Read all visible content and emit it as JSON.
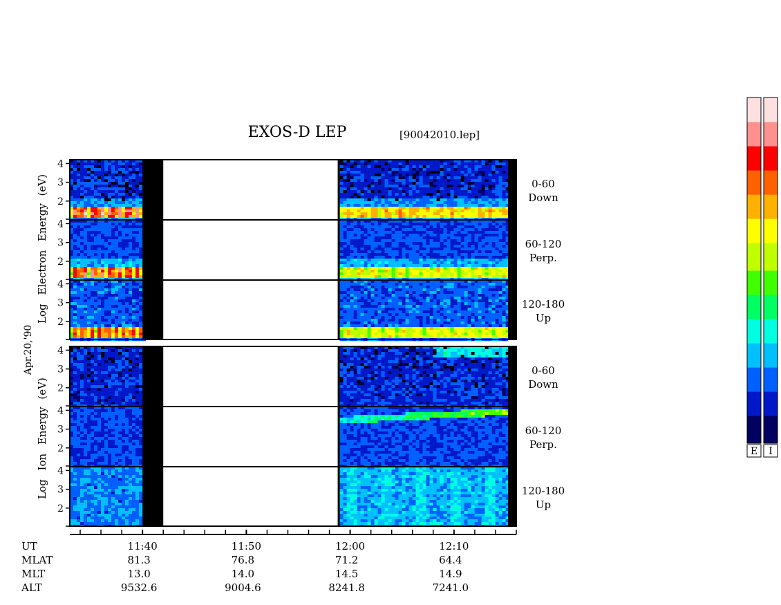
{
  "title": "EXOS-D LEP",
  "file_label": "[90042010.lep]",
  "date_label": "Apr.20,'90",
  "colors": {
    "background_low": "#080c50",
    "gap_black": "#000000",
    "no_data": "#ffffff"
  },
  "chart_data": {
    "type": "heatmap",
    "x_axis": {
      "quantity": "UT",
      "range": [
        "11:33",
        "12:16"
      ],
      "major_ticks": [
        "11:40",
        "11:50",
        "12:00",
        "12:10"
      ],
      "minor_tick_interval_minutes": 2
    },
    "y_axis": {
      "quantity": "Log Energy (eV)",
      "range": [
        1,
        4.2
      ],
      "ticks": [
        "2",
        "3",
        "4"
      ]
    },
    "data_coverage": [
      {
        "from": "11:33",
        "to": "11:40",
        "state": "data"
      },
      {
        "from": "11:40",
        "to": "11:42",
        "state": "gap"
      },
      {
        "from": "11:42",
        "to": "11:59",
        "state": "no data"
      },
      {
        "from": "11:59",
        "to": "12:15",
        "state": "data"
      }
    ],
    "groups": [
      {
        "label_line1": "Electron",
        "label_line2": "Log",
        "label_line3": "Energy",
        "label_line4": "(eV)",
        "panels": [
          {
            "pitch_angle": "0-60",
            "direction": "Down",
            "feature": "strong flux band near log E 1.3-1.7"
          },
          {
            "pitch_angle": "60-120",
            "direction": "Perp.",
            "feature": "strong flux band near log E 1.3-1.7"
          },
          {
            "pitch_angle": "120-180",
            "direction": "Up",
            "feature": "strong flux band near log E 1.3-1.7"
          }
        ]
      },
      {
        "label_line1": "Ion",
        "label_line2": "Log",
        "label_line3": "Energy",
        "label_line4": "(eV)",
        "panels": [
          {
            "pitch_angle": "0-60",
            "direction": "Down",
            "feature": "sparse flux, high-energy band after 12:05"
          },
          {
            "pitch_angle": "60-120",
            "direction": "Perp.",
            "feature": "energetic band rising to log E ~4 after 12:00"
          },
          {
            "pitch_angle": "120-180",
            "direction": "Up",
            "feature": "elevated broadband flux after 12:00"
          }
        ]
      }
    ],
    "orbit_table": {
      "rows": [
        {
          "label": "UT",
          "values": [
            "11:40",
            "11:50",
            "12:00",
            "12:10"
          ]
        },
        {
          "label": "MLAT",
          "values": [
            "81.3",
            "76.8",
            "71.2",
            "64.4"
          ]
        },
        {
          "label": "MLT",
          "values": [
            "13.0",
            "14.0",
            "14.5",
            "14.9"
          ]
        },
        {
          "label": "ALT",
          "values": [
            "9532.6",
            "9004.6",
            "8241.8",
            "7241.0"
          ]
        }
      ]
    },
    "colorbars": [
      {
        "label": "E"
      },
      {
        "label": "I"
      }
    ],
    "colormap": [
      "#000060",
      "#0018c8",
      "#0060ff",
      "#00c0ff",
      "#00ffe0",
      "#00ff60",
      "#40ff00",
      "#c0ff00",
      "#ffff00",
      "#ffb000",
      "#ff6000",
      "#ff0000",
      "#ff9090",
      "#ffe0e0"
    ]
  }
}
